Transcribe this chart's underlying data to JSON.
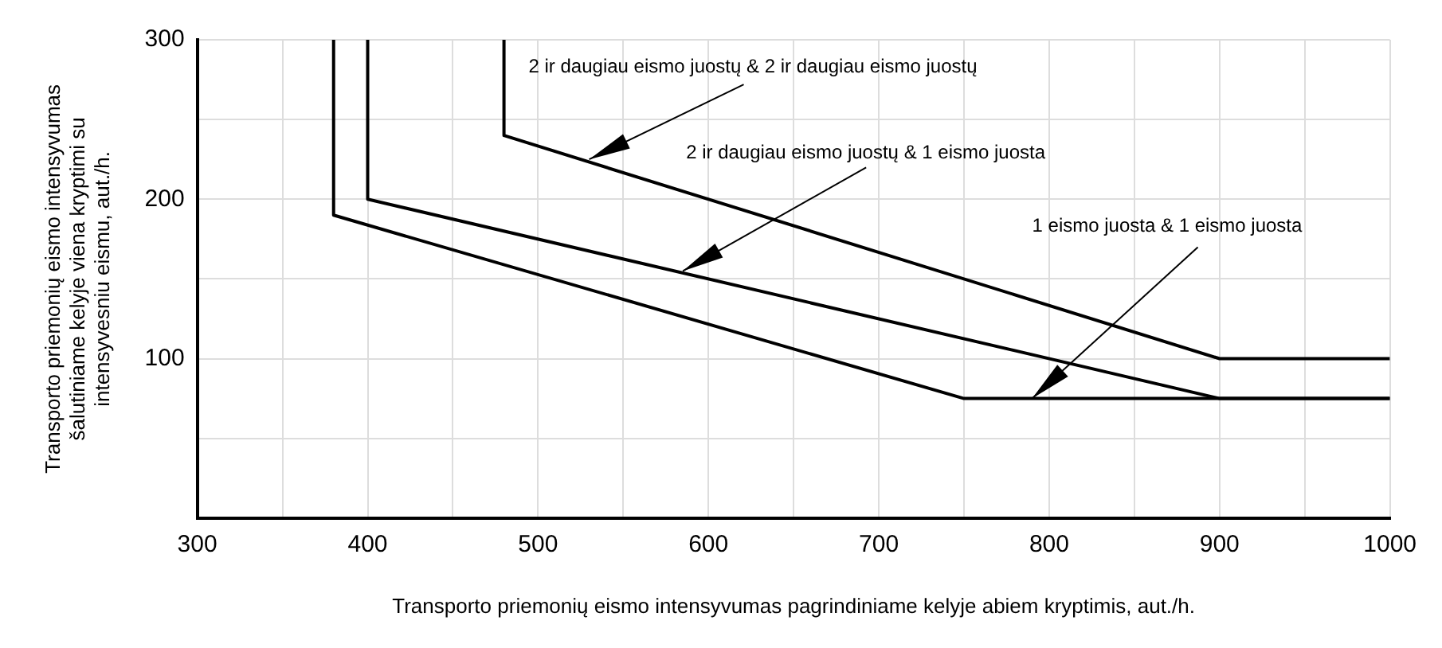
{
  "chart_data": {
    "type": "line",
    "xlabel": "Transporto priemonių eismo intensyvumas pagrindiniame kelyje abiem kryptimis, aut./h.",
    "ylabel": "Transporto priemonių eismo intensyvumas\nšalutiniame kelyje viena kryptimi su\nintensyvesniu eismu, aut./h.",
    "series": [
      {
        "color": "#000000",
        "x": [
          380,
          380,
          750,
          1000
        ],
        "values": [
          300,
          190,
          75,
          75
        ]
      },
      {
        "color": "#000000",
        "x": [
          400,
          400,
          900,
          1000
        ],
        "values": [
          300,
          200,
          75,
          75
        ]
      },
      {
        "color": "#000000",
        "x": [
          480,
          480,
          900,
          1000
        ],
        "values": [
          300,
          240,
          100,
          100
        ]
      }
    ],
    "xlim": [
      300,
      1000
    ],
    "xticks": [
      300,
      {
        "value": 350,
        "label": null
      },
      400,
      {
        "value": 450,
        "label": null
      },
      500,
      {
        "value": 550,
        "label": null
      },
      600,
      {
        "value": 650,
        "label": null
      },
      700,
      {
        "value": 750,
        "label": null
      },
      800,
      {
        "value": 850,
        "label": null
      },
      900,
      {
        "value": 950,
        "label": null
      },
      1000
    ],
    "ylim": [
      0,
      300
    ],
    "yticks": [
      {
        "value": 0,
        "label": null
      },
      {
        "value": 50,
        "label": null
      },
      100,
      {
        "value": 150,
        "label": null
      },
      200,
      {
        "value": 250,
        "label": null
      },
      300
    ],
    "grid": true,
    "legend": false,
    "marker": "none",
    "line_style": "solid",
    "annotations": [
      {
        "text": "2 ir daugiau eismo juostų & 2 ir daugiau eismo juostų",
        "x": 530,
        "y": 225
      },
      {
        "text": "2 ir daugiau eismo juostų & 1 eismo juosta",
        "x": 585,
        "y": 155
      },
      {
        "text": "1 eismo juosta & 1 eismo juosta",
        "x": 790,
        "y": 75
      }
    ]
  }
}
